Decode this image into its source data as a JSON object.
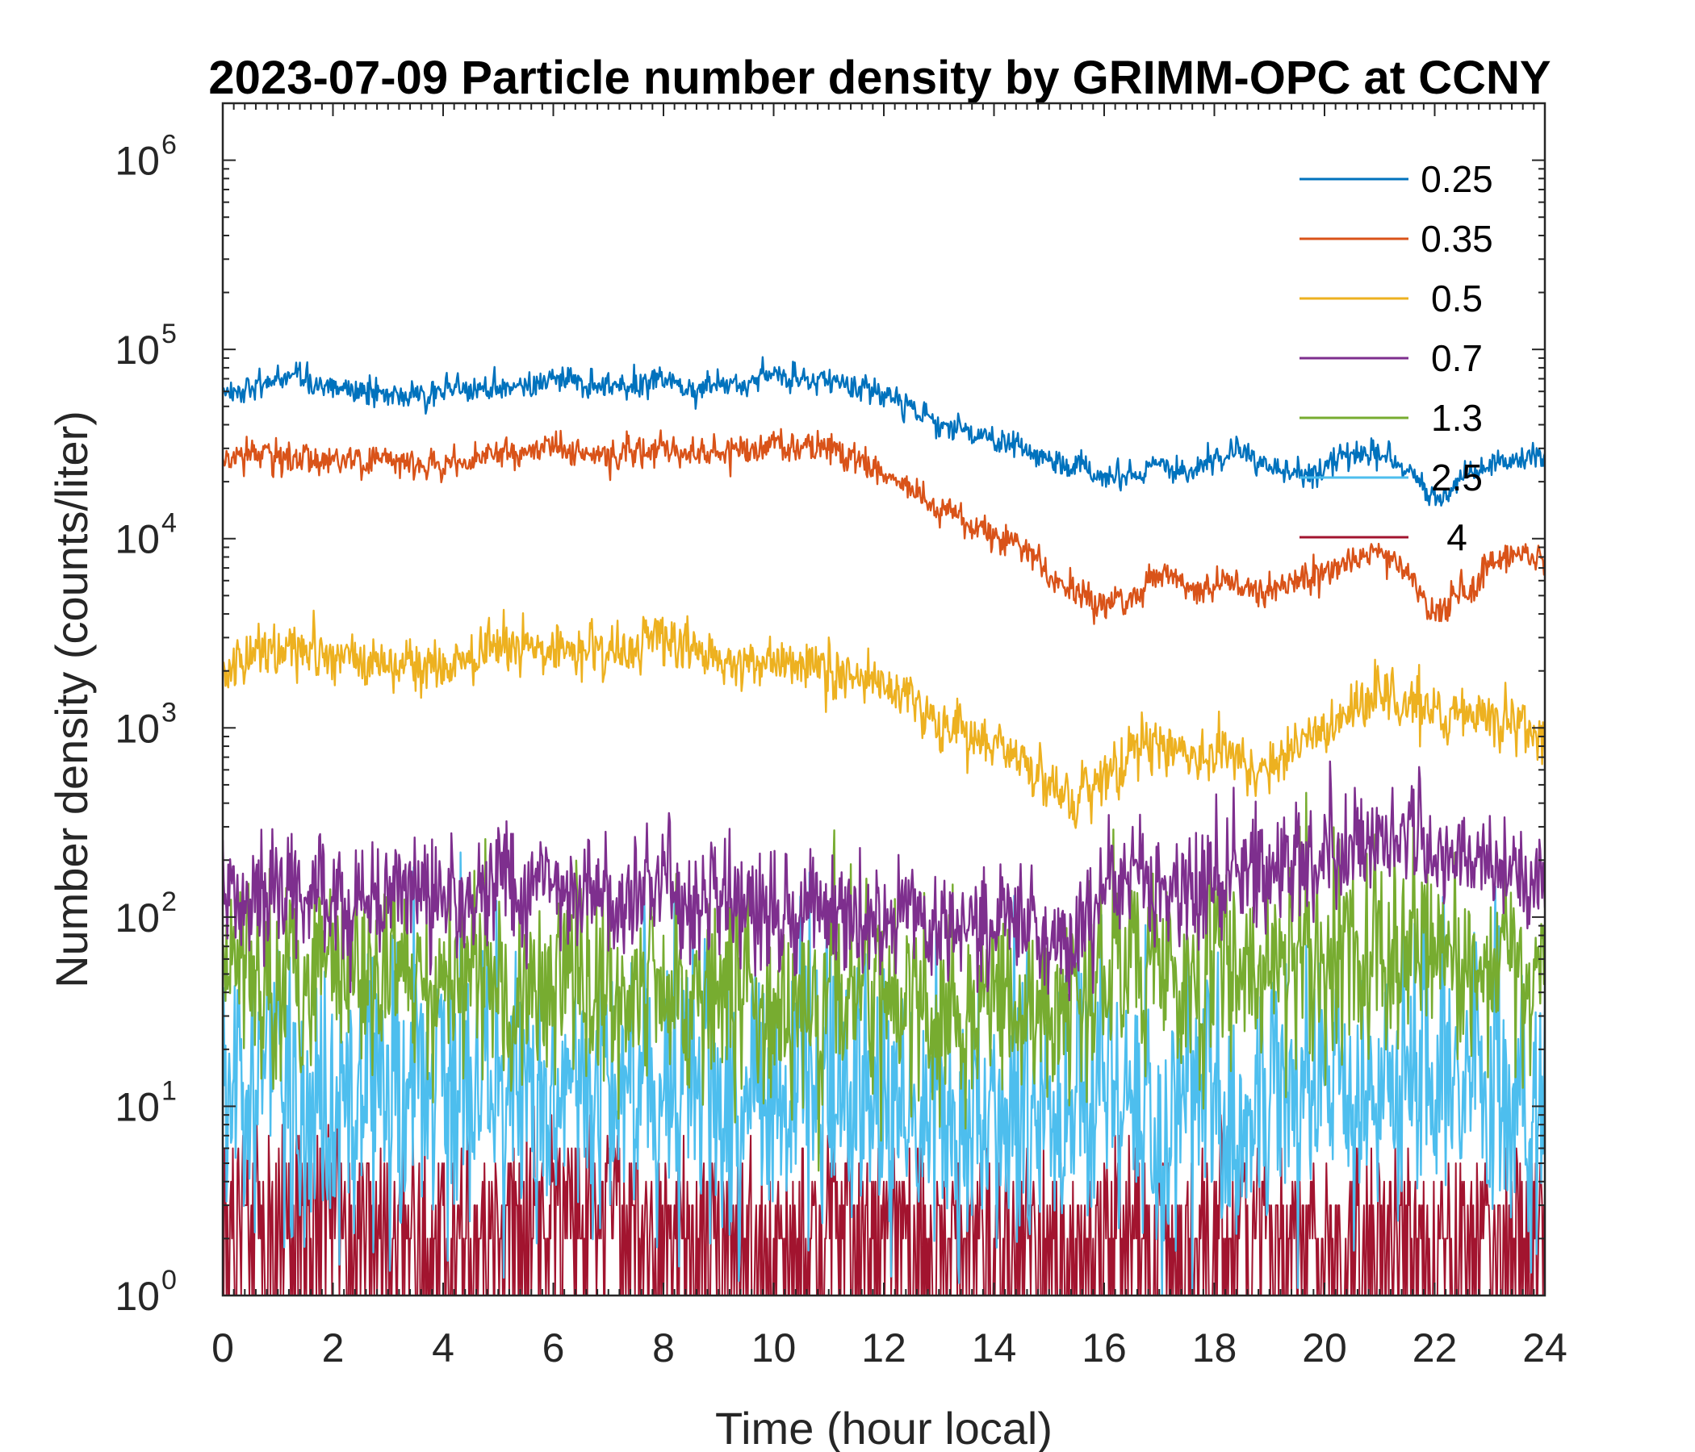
{
  "chart_data": {
    "type": "line",
    "title": "2023-07-09 Particle number density by GRIMM-OPC at CCNY",
    "xlabel": "Time (hour local)",
    "ylabel": "Number density (counts/liter)",
    "yscale": "log",
    "xlim": [
      0,
      24
    ],
    "ylim": [
      1,
      2000000
    ],
    "xticks": [
      0,
      2,
      4,
      6,
      8,
      10,
      12,
      14,
      16,
      18,
      20,
      22,
      24
    ],
    "xtick_labels": [
      "0",
      "2",
      "4",
      "6",
      "8",
      "10",
      "12",
      "14",
      "16",
      "18",
      "20",
      "22",
      "24"
    ],
    "yticks": [
      1,
      10,
      100,
      1000,
      10000,
      100000,
      1000000
    ],
    "ytick_labels": [
      {
        "base": "10",
        "exp": "0"
      },
      {
        "base": "10",
        "exp": "1"
      },
      {
        "base": "10",
        "exp": "2"
      },
      {
        "base": "10",
        "exp": "3"
      },
      {
        "base": "10",
        "exp": "4"
      },
      {
        "base": "10",
        "exp": "5"
      },
      {
        "base": "10",
        "exp": "6"
      }
    ],
    "legend_position": "top-right",
    "x": [
      0,
      0.5,
      1,
      1.5,
      2,
      2.5,
      3,
      3.5,
      4,
      4.5,
      5,
      5.5,
      6,
      6.5,
      7,
      7.5,
      8,
      8.5,
      9,
      9.5,
      10,
      10.5,
      11,
      11.5,
      12,
      12.5,
      13,
      13.5,
      14,
      14.5,
      15,
      15.5,
      16,
      16.5,
      17,
      17.5,
      18,
      18.5,
      19,
      19.5,
      20,
      20.5,
      21,
      21.5,
      22,
      22.5,
      23,
      23.5,
      24
    ],
    "series": [
      {
        "name": "0.25",
        "color": "#0072BD",
        "noise": 0.03,
        "values": [
          60000,
          62000,
          70000,
          66000,
          62000,
          60000,
          58000,
          58000,
          60000,
          62000,
          64000,
          66000,
          68000,
          66000,
          64000,
          66000,
          68000,
          65000,
          63000,
          66000,
          72000,
          70000,
          68000,
          62000,
          57000,
          50000,
          40000,
          36000,
          34000,
          30000,
          26000,
          24000,
          21000,
          22000,
          24000,
          22000,
          26000,
          28000,
          25000,
          22000,
          24000,
          28000,
          27000,
          24000,
          16000,
          20000,
          24000,
          26000,
          27000
        ]
      },
      {
        "name": "0.35",
        "color": "#D95319",
        "noise": 0.035,
        "values": [
          26000,
          27000,
          27000,
          26000,
          27000,
          26000,
          25000,
          25000,
          26000,
          27000,
          28000,
          29000,
          30000,
          28000,
          27000,
          29000,
          30000,
          29000,
          28000,
          30000,
          32000,
          30000,
          29000,
          26000,
          22000,
          19000,
          14000,
          12000,
          10000,
          9500,
          6500,
          5000,
          4500,
          4800,
          6500,
          5500,
          6000,
          5500,
          5000,
          6000,
          6500,
          8000,
          8500,
          7000,
          4000,
          5000,
          7000,
          8500,
          7500
        ]
      },
      {
        "name": "0.5",
        "color": "#EDB120",
        "noise": 0.06,
        "values": [
          2200,
          2400,
          2500,
          2500,
          2600,
          2300,
          2100,
          2100,
          2200,
          2400,
          2500,
          2600,
          2700,
          2500,
          2400,
          2700,
          3000,
          2700,
          2400,
          2300,
          2300,
          2200,
          2100,
          1900,
          1700,
          1400,
          1000,
          900,
          850,
          700,
          500,
          400,
          550,
          700,
          850,
          700,
          750,
          700,
          600,
          800,
          1000,
          1200,
          1500,
          1400,
          1300,
          1200,
          1100,
          1000,
          800
        ]
      },
      {
        "name": "0.7",
        "color": "#7E2F8E",
        "noise": 0.14,
        "values": [
          140,
          150,
          145,
          140,
          150,
          140,
          130,
          125,
          130,
          135,
          140,
          145,
          150,
          140,
          130,
          140,
          145,
          140,
          130,
          110,
          105,
          100,
          100,
          95,
          100,
          100,
          90,
          85,
          85,
          80,
          80,
          85,
          150,
          160,
          150,
          130,
          170,
          180,
          160,
          190,
          210,
          240,
          270,
          300,
          230,
          210,
          190,
          170,
          140
        ]
      },
      {
        "name": "1.3",
        "color": "#77AC30",
        "noise": 0.22,
        "values": [
          55,
          52,
          50,
          48,
          50,
          48,
          45,
          45,
          45,
          45,
          45,
          48,
          50,
          45,
          42,
          45,
          45,
          42,
          40,
          38,
          36,
          35,
          35,
          34,
          35,
          35,
          33,
          32,
          32,
          30,
          30,
          32,
          55,
          60,
          55,
          50,
          55,
          60,
          55,
          60,
          65,
          65,
          70,
          75,
          55,
          52,
          50,
          50,
          45
        ]
      },
      {
        "name": "2.5",
        "color": "#4DBEEE",
        "noise": 0.32,
        "values": [
          14,
          13,
          13,
          12,
          13,
          12,
          12,
          11,
          12,
          12,
          13,
          13,
          13,
          12,
          11,
          12,
          12,
          11,
          10,
          10,
          10,
          10,
          10,
          10,
          10,
          10,
          10,
          10,
          10,
          10,
          10,
          10,
          12,
          12,
          12,
          11,
          12,
          12,
          12,
          12,
          13,
          13,
          13,
          13,
          12,
          12,
          12,
          11,
          10
        ]
      },
      {
        "name": "4",
        "color": "#A2142F",
        "noise": 0,
        "values": [
          3,
          3,
          3,
          3,
          3,
          2,
          2,
          2,
          2,
          2,
          3,
          3,
          3,
          3,
          3,
          2,
          2,
          2,
          2,
          2,
          2,
          2,
          2,
          2,
          2,
          2,
          2,
          2,
          2,
          2,
          2,
          2,
          2,
          2,
          2,
          2,
          2,
          3,
          2,
          2,
          2,
          2,
          2,
          2,
          2,
          2,
          2,
          2,
          2
        ]
      }
    ]
  }
}
